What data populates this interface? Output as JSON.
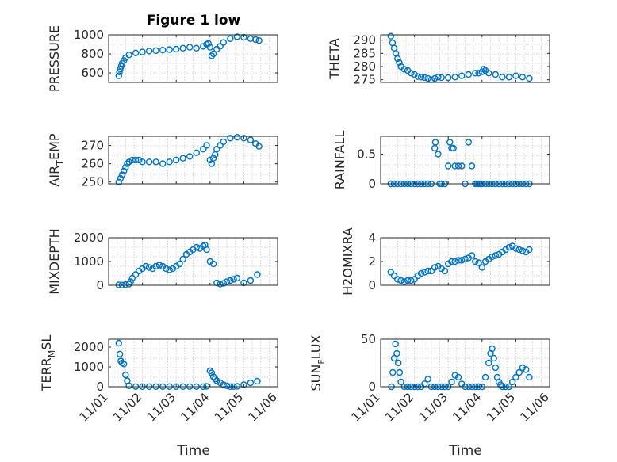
{
  "chart_data": [
    {
      "type": "scatter",
      "title": "Figure 1 low",
      "xlabel": "",
      "ylabel": "PRESSURE",
      "ylim": [
        500,
        1000
      ],
      "yticks": [
        600,
        800,
        1000
      ],
      "ytick_labels": [
        "600",
        "800",
        "1000"
      ],
      "grid": true,
      "x": [
        1.3,
        1.32,
        1.34,
        1.37,
        1.4,
        1.45,
        1.5,
        1.6,
        1.8,
        2.0,
        2.2,
        2.4,
        2.6,
        2.8,
        3.0,
        3.2,
        3.4,
        3.6,
        3.8,
        3.9,
        3.95,
        4.0,
        4.05,
        4.1,
        4.2,
        4.3,
        4.4,
        4.6,
        4.8,
        5.0,
        5.2,
        5.35,
        5.45
      ],
      "y": [
        570,
        610,
        640,
        670,
        700,
        730,
        760,
        790,
        810,
        820,
        830,
        835,
        840,
        845,
        850,
        860,
        870,
        860,
        880,
        900,
        910,
        870,
        780,
        800,
        850,
        880,
        920,
        960,
        980,
        975,
        960,
        950,
        940
      ]
    },
    {
      "type": "scatter",
      "xlabel": "",
      "ylabel": "THETA",
      "ylim": [
        274,
        292
      ],
      "yticks": [
        275,
        280,
        285,
        290
      ],
      "ytick_labels": [
        "275",
        "280",
        "285",
        "290"
      ],
      "grid": true,
      "x": [
        1.3,
        1.35,
        1.4,
        1.45,
        1.5,
        1.55,
        1.6,
        1.7,
        1.8,
        1.9,
        2.0,
        2.1,
        2.2,
        2.3,
        2.4,
        2.5,
        2.6,
        2.7,
        2.8,
        3.0,
        3.2,
        3.4,
        3.6,
        3.8,
        3.9,
        4.0,
        4.05,
        4.1,
        4.2,
        4.4,
        4.6,
        4.8,
        5.0,
        5.2,
        5.4
      ],
      "y": [
        291.5,
        289,
        287,
        285,
        283,
        281.5,
        280,
        279,
        278.5,
        277.5,
        277,
        276.2,
        276,
        275.8,
        275.5,
        275,
        275.5,
        276,
        275.8,
        275.8,
        276,
        276.5,
        277,
        277.5,
        277.5,
        278,
        279,
        278.5,
        277.5,
        277,
        276,
        276,
        276.5,
        276,
        275.5
      ]
    },
    {
      "type": "scatter",
      "xlabel": "",
      "ylabel": "AIR_TEMP",
      "ylim": [
        249,
        275
      ],
      "yticks": [
        250,
        260,
        270
      ],
      "ytick_labels": [
        "250",
        "260",
        "270"
      ],
      "grid": true,
      "x": [
        1.3,
        1.35,
        1.4,
        1.45,
        1.5,
        1.55,
        1.6,
        1.7,
        1.8,
        1.9,
        2.0,
        2.2,
        2.4,
        2.6,
        2.8,
        3.0,
        3.2,
        3.4,
        3.6,
        3.8,
        3.9,
        4.0,
        4.05,
        4.1,
        4.15,
        4.2,
        4.3,
        4.4,
        4.6,
        4.8,
        5.0,
        5.2,
        5.35,
        5.45
      ],
      "y": [
        250,
        252,
        254,
        256,
        258,
        260,
        261,
        262,
        262,
        262,
        261,
        261,
        261,
        260,
        261,
        262,
        263,
        264,
        266,
        268,
        270,
        262,
        260,
        263,
        265,
        268,
        270,
        272,
        274,
        274.5,
        274,
        273,
        271,
        269.5
      ]
    },
    {
      "type": "scatter",
      "xlabel": "",
      "ylabel": "RAINFALL",
      "ylim": [
        0,
        0.8
      ],
      "yticks": [
        0,
        0.5
      ],
      "ytick_labels": [
        "0",
        "0.5"
      ],
      "grid": true,
      "x": [
        1.3,
        1.4,
        1.5,
        1.6,
        1.7,
        1.8,
        1.9,
        2.0,
        2.1,
        2.2,
        2.3,
        2.4,
        2.5,
        2.6,
        2.62,
        2.7,
        2.75,
        2.8,
        2.9,
        3.0,
        3.05,
        3.1,
        3.15,
        3.2,
        3.3,
        3.4,
        3.5,
        3.6,
        3.7,
        3.8,
        3.85,
        3.9,
        3.95,
        4.0,
        4.1,
        4.2,
        4.3,
        4.4,
        4.5,
        4.6,
        4.7,
        4.8,
        4.9,
        5.0,
        5.1,
        5.2,
        5.3,
        5.4
      ],
      "y": [
        0,
        0,
        0,
        0,
        0,
        0,
        0,
        0,
        0,
        0,
        0,
        0,
        0,
        0.6,
        0.7,
        0.5,
        0,
        0,
        0,
        0.3,
        0.7,
        0.6,
        0.6,
        0.3,
        0.3,
        0.3,
        0,
        0.7,
        0.3,
        0,
        0,
        0,
        0,
        0,
        0,
        0,
        0,
        0,
        0,
        0,
        0,
        0,
        0,
        0,
        0,
        0,
        0,
        0
      ]
    },
    {
      "type": "scatter",
      "xlabel": "",
      "ylabel": "MIXDEPTH",
      "ylim": [
        0,
        2000
      ],
      "yticks": [
        0,
        1000,
        2000
      ],
      "ytick_labels": [
        "0",
        "1000",
        "2000"
      ],
      "grid": true,
      "x": [
        1.3,
        1.4,
        1.5,
        1.6,
        1.65,
        1.7,
        1.8,
        1.9,
        2.0,
        2.1,
        2.2,
        2.3,
        2.4,
        2.5,
        2.6,
        2.7,
        2.8,
        2.9,
        3.0,
        3.1,
        3.2,
        3.3,
        3.4,
        3.5,
        3.6,
        3.7,
        3.8,
        3.85,
        3.9,
        4.0,
        4.1,
        4.2,
        4.3,
        4.4,
        4.5,
        4.6,
        4.7,
        4.8,
        5.0,
        5.2,
        5.4
      ],
      "y": [
        20,
        10,
        30,
        50,
        150,
        300,
        450,
        600,
        700,
        800,
        750,
        700,
        800,
        850,
        800,
        700,
        650,
        700,
        800,
        900,
        1100,
        1300,
        1400,
        1500,
        1600,
        1550,
        1650,
        1700,
        1500,
        1000,
        900,
        100,
        50,
        80,
        150,
        200,
        250,
        300,
        100,
        200,
        450
      ]
    },
    {
      "type": "scatter",
      "xlabel": "",
      "ylabel": "H2OMIXRA",
      "ylim": [
        0,
        4
      ],
      "yticks": [
        0,
        2,
        4
      ],
      "ytick_labels": [
        "0",
        "2",
        "4"
      ],
      "grid": true,
      "x": [
        1.3,
        1.4,
        1.5,
        1.6,
        1.7,
        1.8,
        1.9,
        2.0,
        2.1,
        2.2,
        2.3,
        2.4,
        2.5,
        2.6,
        2.7,
        2.8,
        2.9,
        3.0,
        3.1,
        3.2,
        3.3,
        3.4,
        3.5,
        3.6,
        3.7,
        3.8,
        3.9,
        4.0,
        4.1,
        4.2,
        4.3,
        4.4,
        4.5,
        4.6,
        4.7,
        4.8,
        4.9,
        5.0,
        5.1,
        5.2,
        5.3,
        5.4
      ],
      "y": [
        1.1,
        0.8,
        0.5,
        0.4,
        0.3,
        0.4,
        0.4,
        0.5,
        0.8,
        1.0,
        1.1,
        1.2,
        1.2,
        1.5,
        1.6,
        1.4,
        1.2,
        1.8,
        2.0,
        2.0,
        2.1,
        2.1,
        2.2,
        2.3,
        2.5,
        2.0,
        1.9,
        1.5,
        2.0,
        2.2,
        2.4,
        2.5,
        2.6,
        2.8,
        3.0,
        3.2,
        3.3,
        3.1,
        3.0,
        2.9,
        2.8,
        3.0
      ]
    },
    {
      "type": "scatter",
      "xlabel": "Time",
      "ylabel": "TERR_MSL",
      "ylim": [
        0,
        2400
      ],
      "yticks": [
        0,
        1000,
        2000
      ],
      "ytick_labels": [
        "0",
        "1000",
        "2000"
      ],
      "xlim": [
        1,
        6
      ],
      "xticks": [
        1,
        2,
        3,
        4,
        5,
        6
      ],
      "xtick_labels": [
        "11/01",
        "11/02",
        "11/03",
        "11/04",
        "11/05",
        "11/06"
      ],
      "grid": true,
      "x": [
        1.3,
        1.33,
        1.36,
        1.4,
        1.45,
        1.5,
        1.55,
        1.6,
        1.8,
        2.0,
        2.2,
        2.4,
        2.6,
        2.8,
        3.0,
        3.2,
        3.4,
        3.6,
        3.8,
        3.9,
        4.0,
        4.05,
        4.1,
        4.15,
        4.2,
        4.3,
        4.4,
        4.5,
        4.6,
        4.7,
        4.8,
        5.0,
        5.2,
        5.4
      ],
      "y": [
        2200,
        1650,
        1300,
        1200,
        1150,
        600,
        300,
        50,
        10,
        10,
        10,
        10,
        10,
        10,
        10,
        10,
        10,
        10,
        10,
        20,
        800,
        700,
        500,
        400,
        300,
        200,
        100,
        50,
        10,
        10,
        20,
        100,
        200,
        280
      ]
    },
    {
      "type": "scatter",
      "xlabel": "Time",
      "ylabel": "SUN_FLUX",
      "ylim": [
        0,
        50
      ],
      "yticks": [
        0,
        50
      ],
      "ytick_labels": [
        "0",
        "50"
      ],
      "xlim": [
        1,
        6
      ],
      "xticks": [
        1,
        2,
        3,
        4,
        5,
        6
      ],
      "xtick_labels": [
        "11/01",
        "11/02",
        "11/03",
        "11/04",
        "11/05",
        "11/06"
      ],
      "grid": true,
      "x": [
        1.32,
        1.36,
        1.4,
        1.44,
        1.48,
        1.52,
        1.56,
        1.6,
        1.7,
        1.8,
        1.9,
        2.0,
        2.1,
        2.2,
        2.3,
        2.4,
        2.5,
        2.6,
        2.7,
        2.8,
        2.9,
        3.0,
        3.1,
        3.2,
        3.3,
        3.4,
        3.5,
        3.6,
        3.7,
        3.8,
        3.9,
        4.0,
        4.1,
        4.2,
        4.25,
        4.3,
        4.35,
        4.4,
        4.45,
        4.5,
        4.55,
        4.6,
        4.7,
        4.8,
        4.9,
        5.0,
        5.1,
        5.2,
        5.3,
        5.4
      ],
      "y": [
        0,
        15,
        30,
        45,
        35,
        25,
        15,
        5,
        0,
        0,
        0,
        0,
        0,
        0,
        3,
        8,
        0,
        0,
        0,
        0,
        0,
        0,
        5,
        12,
        10,
        3,
        0,
        0,
        0,
        0,
        0,
        0,
        10,
        25,
        35,
        40,
        30,
        20,
        10,
        5,
        2,
        0,
        0,
        0,
        5,
        10,
        15,
        20,
        18,
        10
      ]
    }
  ],
  "colors": {
    "marker": "#0072bd",
    "axis": "#262626",
    "grid": "#c8c8c8"
  }
}
